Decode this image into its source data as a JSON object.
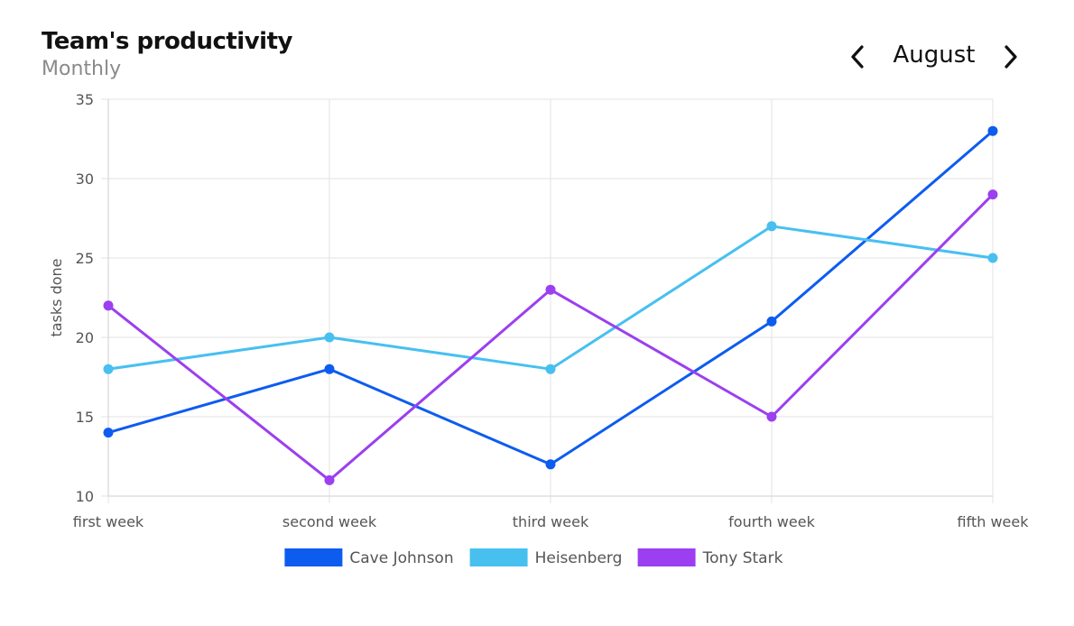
{
  "header": {
    "title": "Team's productivity",
    "subtitle": "Monthly"
  },
  "month_nav": {
    "month": "August",
    "prev_icon": "chevron-left-icon",
    "next_icon": "chevron-right-icon"
  },
  "chart_data": {
    "type": "line",
    "title": "",
    "xlabel": "",
    "ylabel": "tasks done",
    "categories": [
      "first week",
      "second week",
      "third week",
      "fourth week",
      "fifth week"
    ],
    "ylim": [
      10,
      35
    ],
    "yticks": [
      10,
      15,
      20,
      25,
      30,
      35
    ],
    "grid": true,
    "legend_position": "bottom",
    "series": [
      {
        "name": "Cave Johnson",
        "color": "#0d5cf0",
        "values": [
          14,
          18,
          12,
          21,
          33
        ]
      },
      {
        "name": "Heisenberg",
        "color": "#47c0f0",
        "values": [
          18,
          20,
          18,
          27,
          25
        ]
      },
      {
        "name": "Tony Stark",
        "color": "#9b3ff0",
        "values": [
          22,
          11,
          23,
          15,
          29
        ]
      }
    ]
  }
}
